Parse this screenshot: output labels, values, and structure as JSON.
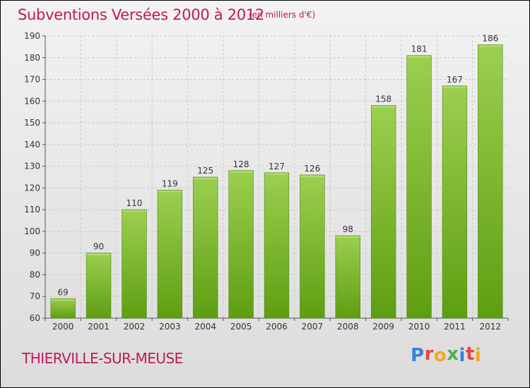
{
  "title": "Subventions Versées 2000 à 2012",
  "subtitle": "(en milliers d'€)",
  "commune": "THIERVILLE-SUR-MEUSE",
  "logo": {
    "text": "Proxiti",
    "letters": [
      "P",
      "r",
      "o",
      "x",
      "i",
      "t",
      "i"
    ],
    "colors": [
      "#3b7fd9",
      "#e8453c",
      "#f5a623",
      "#4caf50",
      "#3b7fd9",
      "#e8453c",
      "#f5a623"
    ]
  },
  "chart_data": {
    "type": "bar",
    "categories": [
      "2000",
      "2001",
      "2002",
      "2003",
      "2004",
      "2005",
      "2006",
      "2007",
      "2008",
      "2009",
      "2010",
      "2011",
      "2012"
    ],
    "values": [
      69,
      90,
      110,
      119,
      125,
      128,
      127,
      126,
      98,
      158,
      181,
      167,
      186
    ],
    "title": "Subventions Versées 2000 à 2012",
    "ylim": [
      60,
      190
    ],
    "yticks": [
      60,
      70,
      80,
      90,
      100,
      110,
      120,
      130,
      140,
      150,
      160,
      170,
      180,
      190
    ],
    "grid": true,
    "bar_color_top": "#9ccf4f",
    "bar_color_bottom": "#5e9e12"
  }
}
